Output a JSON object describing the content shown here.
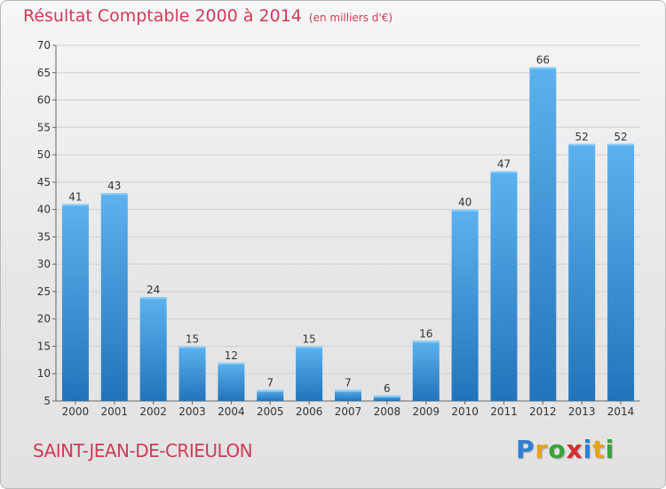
{
  "chart_data": {
    "type": "bar",
    "title": "Résultat Comptable 2000 à 2014",
    "subtitle": "(en milliers d'€)",
    "categories": [
      "2000",
      "2001",
      "2002",
      "2003",
      "2004",
      "2005",
      "2006",
      "2007",
      "2008",
      "2009",
      "2010",
      "2011",
      "2012",
      "2013",
      "2014"
    ],
    "values": [
      41,
      43,
      24,
      15,
      12,
      7,
      15,
      7,
      6,
      16,
      40,
      47,
      66,
      52,
      52
    ],
    "ylim": [
      5,
      70
    ],
    "yticks": [
      5,
      10,
      15,
      20,
      25,
      30,
      35,
      40,
      45,
      50,
      55,
      60,
      65,
      70
    ],
    "xlabel": "",
    "ylabel": "",
    "grid": "horizontal"
  },
  "commune": "SAINT-JEAN-DE-CRIEULON",
  "logo": {
    "text": "Proxiti",
    "colors": [
      "#2d7fd1",
      "#e8a21c",
      "#3aa23a",
      "#d32f2f",
      "#2d7fd1",
      "#e8a21c",
      "#3aa23a"
    ]
  },
  "colors": {
    "accent": "#d23a57",
    "bar_light": "#5bb0ee",
    "bar_dark": "#1e6fb3",
    "grid": "#cfcfcf"
  }
}
